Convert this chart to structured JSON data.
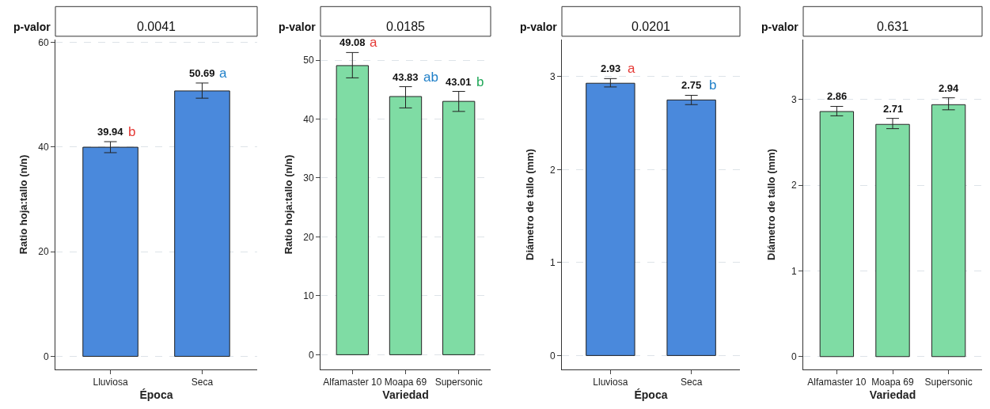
{
  "chart_data": [
    {
      "type": "bar",
      "title": "p-valor",
      "subtitle": "0.0041",
      "xlabel": "Época",
      "ylabel": "Ratio hoja:tallo (n/n)",
      "categories": [
        "Lluviosa",
        "Seca"
      ],
      "values": [
        39.94,
        50.69
      ],
      "color": "#4a89dc",
      "errors": [
        [
          38.9,
          41.0
        ],
        [
          49.3,
          52.2
        ]
      ],
      "ylim": [
        -2.5,
        60.5
      ],
      "yticks": [
        0,
        20,
        40,
        60
      ],
      "grid": "y",
      "data_labels": true,
      "annotations": [
        {
          "text": "b",
          "x": "Lluviosa",
          "y": 39.94
        },
        {
          "text": "a",
          "x": "Seca",
          "y": 50.69
        }
      ]
    },
    {
      "type": "bar",
      "title": "p-valor",
      "subtitle": "0.0185",
      "xlabel": "Variedad",
      "ylabel": "Ratio hoja:tallo (n/n)",
      "categories": [
        "Alfamaster 10",
        "Moapa 69",
        "Supersonic"
      ],
      "values": [
        49.08,
        43.83,
        43.01
      ],
      "color": "#7fdca4",
      "errors": [
        [
          47.0,
          51.3
        ],
        [
          41.9,
          45.5
        ],
        [
          41.3,
          44.7
        ]
      ],
      "ylim": [
        -2.5,
        53.5
      ],
      "yticks": [
        0,
        10,
        20,
        30,
        40,
        50
      ],
      "grid": "y",
      "data_labels": true,
      "annotations": [
        {
          "text": "a",
          "x": "Alfamaster 10",
          "y": 49.08
        },
        {
          "text": "ab",
          "x": "Moapa 69",
          "y": 43.83
        },
        {
          "text": "b",
          "x": "Supersonic",
          "y": 43.01
        }
      ]
    },
    {
      "type": "bar",
      "title": "p-valor",
      "subtitle": "0.0201",
      "xlabel": "Época",
      "ylabel": "Diámetro de tallo (mm)",
      "categories": [
        "Lluviosa",
        "Seca"
      ],
      "values": [
        2.93,
        2.75
      ],
      "color": "#4a89dc",
      "errors": [
        [
          2.89,
          2.98
        ],
        [
          2.7,
          2.8
        ]
      ],
      "ylim": [
        -0.15,
        3.4
      ],
      "yticks": [
        0,
        1,
        2,
        3
      ],
      "grid": "y",
      "data_labels": true,
      "annotations": [
        {
          "text": "a",
          "x": "Lluviosa",
          "y": 2.93
        },
        {
          "text": "b",
          "x": "Seca",
          "y": 2.75
        }
      ]
    },
    {
      "type": "bar",
      "title": "p-valor",
      "subtitle": "0.631",
      "xlabel": "Variedad",
      "ylabel": "Diámetro de tallo (mm)",
      "categories": [
        "Alfamaster 10",
        "Moapa 69",
        "Supersonic"
      ],
      "values": [
        2.86,
        2.71,
        2.94
      ],
      "color": "#7fdca4",
      "errors": [
        [
          2.81,
          2.92
        ],
        [
          2.66,
          2.78
        ],
        [
          2.88,
          3.02
        ]
      ],
      "ylim": [
        -0.15,
        3.7
      ],
      "yticks": [
        0,
        1,
        2,
        3
      ],
      "grid": "y",
      "data_labels": true
    }
  ]
}
